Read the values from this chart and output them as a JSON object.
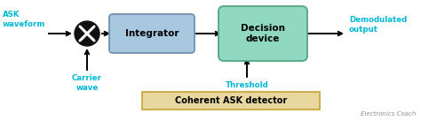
{
  "bg_color": "#ffffff",
  "title_text": "Coherent ASK detector",
  "title_box_facecolor": "#e8d8a0",
  "title_box_edgecolor": "#c8a840",
  "watermark": "Electronics Coach",
  "cyan_color": "#00b8d4",
  "ask_label": "ASK\nwaveform",
  "carrier_label": "Carrier\nwave",
  "integrator_label": "Integrator",
  "integrator_box_facecolor": "#a8c8e0",
  "integrator_box_edgecolor": "#7090b0",
  "decision_label": "Decision\ndevice",
  "decision_box_facecolor": "#90d8c0",
  "decision_box_edgecolor": "#50a880",
  "demod_label": "Demodulated\noutput",
  "threshold_label": "Threshold",
  "fig_w": 4.74,
  "fig_h": 1.37,
  "dpi": 100
}
